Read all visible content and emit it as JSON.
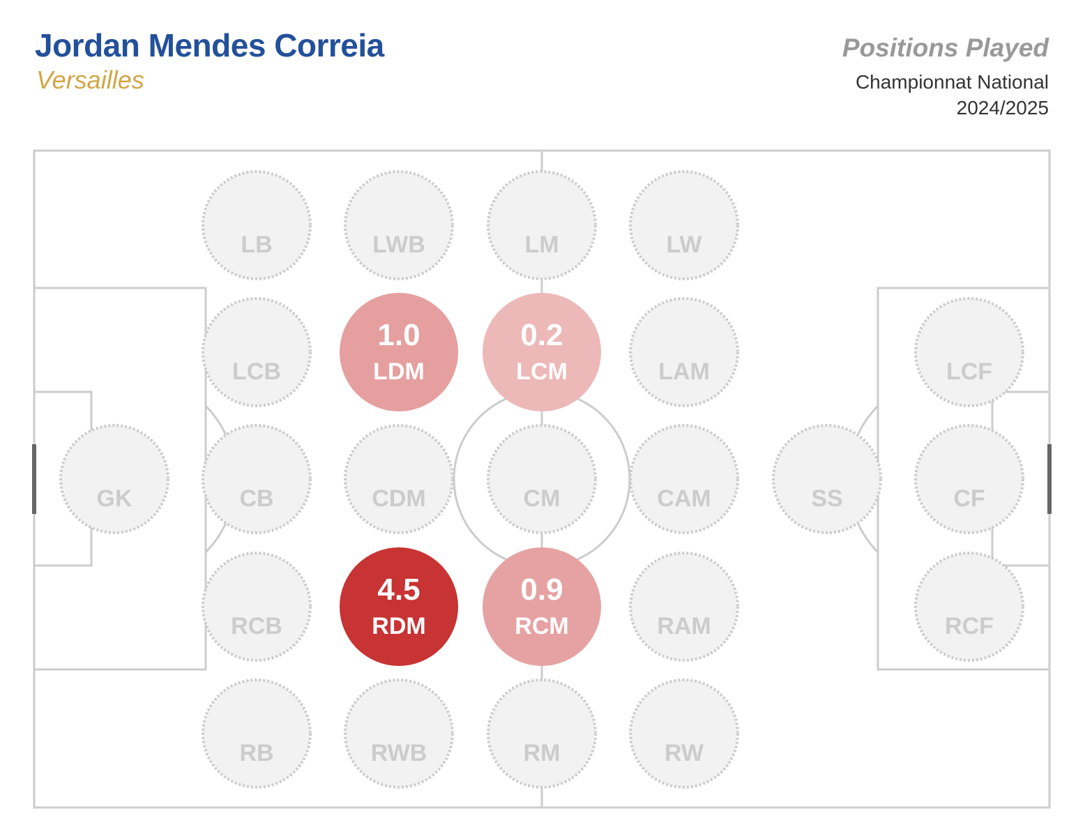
{
  "header": {
    "player_name": "Jordan Mendes Correia",
    "team": "Versailles",
    "title": "Positions Played",
    "competition": "Championnat National",
    "season": "2024/2025"
  },
  "colors": {
    "name": "#23509a",
    "team": "#d1a645",
    "title": "#999999",
    "pitch_lines": "#cccccc",
    "empty_fill": "#f2f2f2",
    "empty_stroke": "#cccccc",
    "empty_text": "#cccccc",
    "scale_low": "#ecb8b8",
    "scale_high": "#c83333"
  },
  "chart_data": {
    "type": "scatter",
    "description_kind": "pitch position map",
    "positions": [
      {
        "code": "GK",
        "row": 3,
        "col": 0,
        "value": null
      },
      {
        "code": "LB",
        "row": 1,
        "col": 1,
        "value": null
      },
      {
        "code": "LCB",
        "row": 2,
        "col": 1,
        "value": null
      },
      {
        "code": "CB",
        "row": 3,
        "col": 1,
        "value": null
      },
      {
        "code": "RCB",
        "row": 4,
        "col": 1,
        "value": null
      },
      {
        "code": "RB",
        "row": 5,
        "col": 1,
        "value": null
      },
      {
        "code": "LWB",
        "row": 1,
        "col": 2,
        "value": null
      },
      {
        "code": "LDM",
        "row": 2,
        "col": 2,
        "value": 1.0,
        "label": "1.0"
      },
      {
        "code": "CDM",
        "row": 3,
        "col": 2,
        "value": null
      },
      {
        "code": "RDM",
        "row": 4,
        "col": 2,
        "value": 4.5,
        "label": "4.5"
      },
      {
        "code": "RWB",
        "row": 5,
        "col": 2,
        "value": null
      },
      {
        "code": "LM",
        "row": 1,
        "col": 3,
        "value": null
      },
      {
        "code": "LCM",
        "row": 2,
        "col": 3,
        "value": 0.2,
        "label": "0.2"
      },
      {
        "code": "CM",
        "row": 3,
        "col": 3,
        "value": null
      },
      {
        "code": "RCM",
        "row": 4,
        "col": 3,
        "value": 0.9,
        "label": "0.9"
      },
      {
        "code": "RM",
        "row": 5,
        "col": 3,
        "value": null
      },
      {
        "code": "LW",
        "row": 1,
        "col": 4,
        "value": null
      },
      {
        "code": "LAM",
        "row": 2,
        "col": 4,
        "value": null
      },
      {
        "code": "CAM",
        "row": 3,
        "col": 4,
        "value": null
      },
      {
        "code": "RAM",
        "row": 4,
        "col": 4,
        "value": null
      },
      {
        "code": "RW",
        "row": 5,
        "col": 4,
        "value": null
      },
      {
        "code": "SS",
        "row": 3,
        "col": 5,
        "value": null
      },
      {
        "code": "LCF",
        "row": 2,
        "col": 6,
        "value": null
      },
      {
        "code": "CF",
        "row": 3,
        "col": 6,
        "value": null
      },
      {
        "code": "RCF",
        "row": 4,
        "col": 6,
        "value": null
      }
    ]
  }
}
